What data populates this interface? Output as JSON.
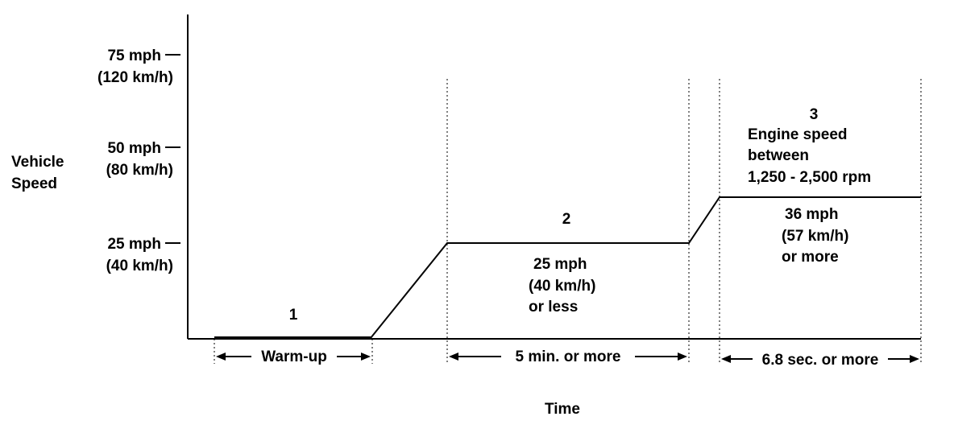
{
  "y_axis": {
    "label_lines": [
      "Vehicle",
      "Speed"
    ],
    "ticks": [
      {
        "mph": "75 mph",
        "kmh": "(120 km/h)"
      },
      {
        "mph": "50 mph",
        "kmh": "(80 km/h)"
      },
      {
        "mph": "25 mph",
        "kmh": "(40 km/h)"
      }
    ]
  },
  "x_axis": {
    "label": "Time"
  },
  "phases": [
    {
      "number": "1",
      "duration": "Warm-up",
      "speed_lines": [],
      "note_lines": []
    },
    {
      "number": "2",
      "duration": "5 min. or more",
      "speed_lines": [
        "25 mph",
        "(40 km/h)",
        "or less"
      ],
      "note_lines": []
    },
    {
      "number": "3",
      "duration": "6.8 sec. or more",
      "speed_lines": [
        "36 mph",
        "(57 km/h)",
        "or more"
      ],
      "note_lines": [
        "Engine speed",
        "between",
        "1,250 - 2,500 rpm"
      ]
    }
  ]
}
